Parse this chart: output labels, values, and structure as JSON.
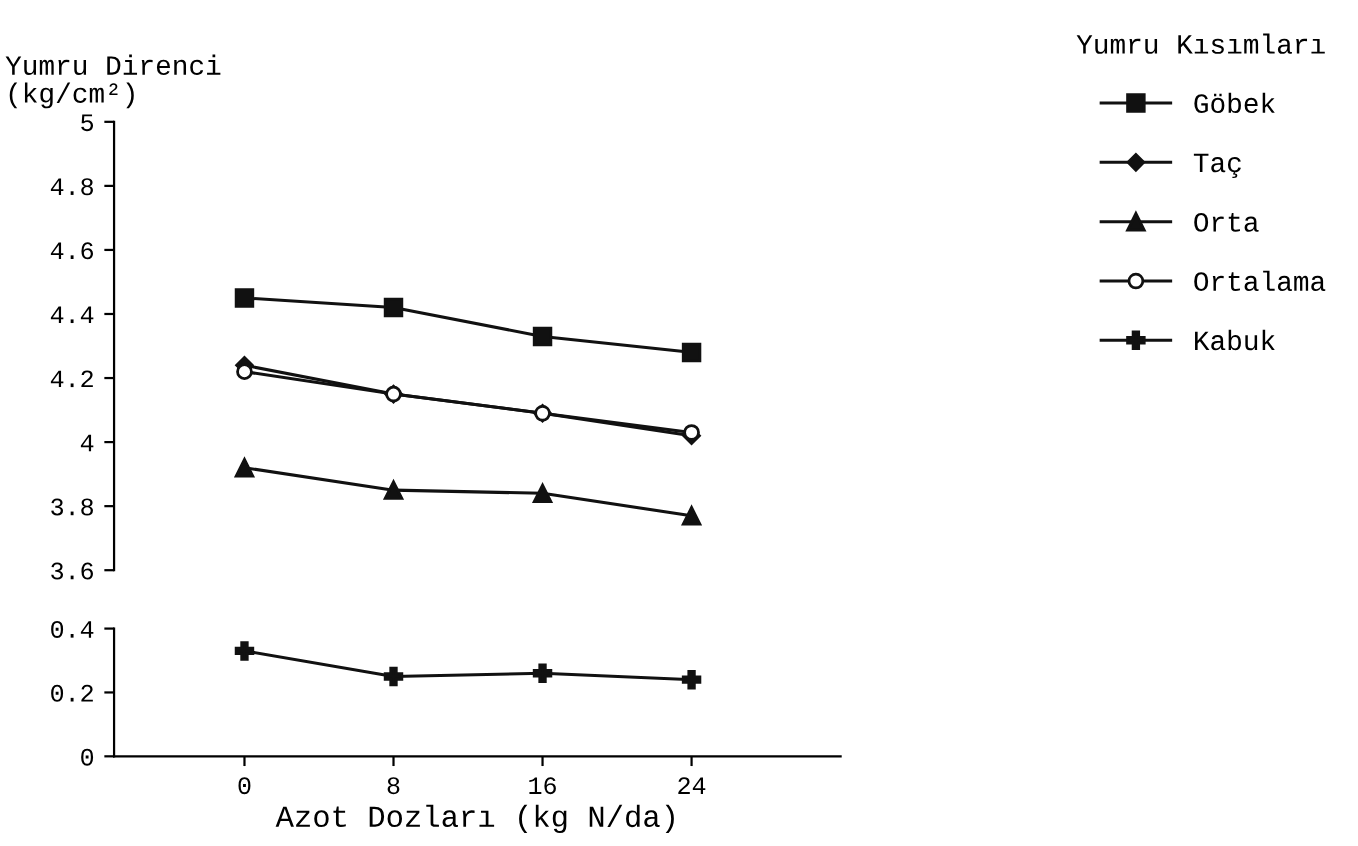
{
  "chart_data": [
    {
      "type": "line",
      "ylabel": "Yumru Direnci\n(kg/cm²)",
      "legend_title": "Yumru Kısımları",
      "legend": "right",
      "tick_labels": "y",
      "x": [
        0,
        8,
        16,
        24
      ],
      "ylim": [
        3.6,
        5
      ],
      "yticks": [
        3.6,
        3.8,
        4,
        4.2,
        4.4,
        4.6,
        4.8,
        5
      ],
      "line_style": "solid",
      "series": [
        {
          "name": "Göbek",
          "color": "#111111",
          "marker": "square",
          "values": [
            4.45,
            4.42,
            4.33,
            4.28
          ]
        },
        {
          "name": "Taç",
          "color": "#111111",
          "marker": "diamond",
          "values": [
            4.24,
            4.15,
            4.09,
            4.02
          ]
        },
        {
          "name": "Orta",
          "color": "#111111",
          "marker": "triangle",
          "values": [
            3.92,
            3.85,
            3.84,
            3.77
          ]
        },
        {
          "name": "Ortalama",
          "color": "#111111",
          "marker": "circle",
          "values": [
            4.22,
            4.15,
            4.09,
            4.03
          ]
        }
      ]
    },
    {
      "type": "line",
      "xlabel": "Azot Dozları (kg N/da)",
      "legend": "right",
      "x": [
        0,
        8,
        16,
        24
      ],
      "xlim": [
        -7,
        32
      ],
      "xticks": [
        0,
        8,
        16,
        24
      ],
      "ylim": [
        0,
        0.4
      ],
      "yticks": [
        0,
        0.2,
        0.4
      ],
      "line_style": "solid",
      "series": [
        {
          "name": "Kabuk",
          "color": "#111111",
          "marker": "cross",
          "values": [
            0.33,
            0.25,
            0.26,
            0.24
          ]
        }
      ]
    }
  ]
}
